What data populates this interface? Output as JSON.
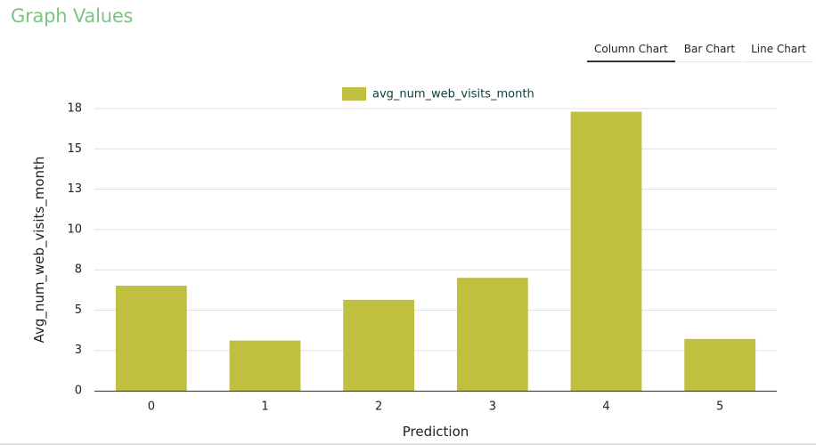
{
  "page": {
    "title": "Graph Values"
  },
  "tabs": [
    {
      "label": "Column Chart",
      "active": true
    },
    {
      "label": "Bar Chart",
      "active": false
    },
    {
      "label": "Line Chart",
      "active": false
    }
  ],
  "colors": {
    "bar": "#c0c040",
    "title": "#7dc383",
    "grid": "#e0e0e0",
    "axis": "#333333",
    "text": "#222222"
  },
  "chart_data": {
    "type": "bar",
    "categories": [
      "0",
      "1",
      "2",
      "3",
      "4",
      "5"
    ],
    "series": [
      {
        "name": "avg_num_web_visits_month",
        "values": [
          6.7,
          3.2,
          5.8,
          7.2,
          17.8,
          3.3
        ]
      }
    ],
    "xlabel": "Prediction",
    "ylabel": "Avg_num_web_visits_month",
    "ylim": [
      0,
      18
    ],
    "yticks": [
      0,
      2.57,
      5.14,
      7.71,
      10.29,
      12.86,
      15.43,
      18
    ],
    "ytick_labels": [
      "0",
      "3",
      "5",
      "8",
      "10",
      "13",
      "15",
      "18"
    ],
    "legend": "top-center",
    "grid": true
  }
}
